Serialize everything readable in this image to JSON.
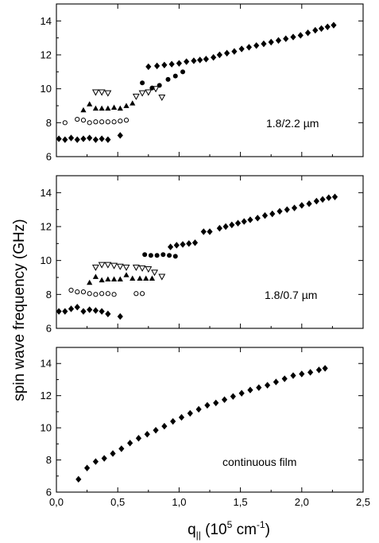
{
  "figure": {
    "ylabel": "spin wave frequency (GHz)",
    "xlabel": {
      "base": "q",
      "subscript": "||",
      "before_exp": " (10",
      "exp": "5",
      "mid": " cm",
      "exp2": "-1",
      "after": ")"
    },
    "x_tick_labels": [
      "0,0",
      "0,5",
      "1,0",
      "1,5",
      "2,0",
      "2,5"
    ],
    "y_tick_labels": [
      "6",
      "8",
      "10",
      "12",
      "14"
    ]
  },
  "chart_data": [
    {
      "type": "scatter",
      "title": "",
      "annotation": "1.8/2.2 µm",
      "xlabel": "q|| (10^5 cm^-1)",
      "ylabel": "spin wave frequency (GHz)",
      "xlim": [
        0,
        2.5
      ],
      "ylim": [
        6,
        15
      ],
      "grid": false,
      "series": [
        {
          "marker": "filled-diamond",
          "x": [
            0.02,
            0.07,
            0.12,
            0.17,
            0.22,
            0.27,
            0.32,
            0.37,
            0.42,
            0.52,
            0.75,
            0.82,
            0.88,
            0.94,
            1.0,
            1.06,
            1.12,
            1.17,
            1.22,
            1.28,
            1.33,
            1.39,
            1.45,
            1.51,
            1.57,
            1.63,
            1.69,
            1.75,
            1.81,
            1.87,
            1.93,
            1.99,
            2.05,
            2.11,
            2.16,
            2.21,
            2.26
          ],
          "y": [
            7.05,
            7.0,
            7.1,
            7.0,
            7.05,
            7.1,
            7.0,
            7.05,
            7.0,
            7.25,
            11.3,
            11.35,
            11.4,
            11.45,
            11.5,
            11.6,
            11.65,
            11.7,
            11.75,
            11.85,
            12.0,
            12.1,
            12.2,
            12.35,
            12.45,
            12.55,
            12.65,
            12.75,
            12.85,
            12.95,
            13.05,
            13.15,
            13.3,
            13.45,
            13.55,
            13.65,
            13.75
          ]
        },
        {
          "marker": "open-circle",
          "x": [
            0.07,
            0.17,
            0.22,
            0.27,
            0.32,
            0.37,
            0.42,
            0.47,
            0.52,
            0.57
          ],
          "y": [
            8.0,
            8.2,
            8.15,
            8.0,
            8.05,
            8.05,
            8.05,
            8.05,
            8.1,
            8.15
          ]
        },
        {
          "marker": "filled-triangle",
          "x": [
            0.22,
            0.27,
            0.32,
            0.37,
            0.42,
            0.47,
            0.52,
            0.57,
            0.62
          ],
          "y": [
            8.75,
            9.1,
            8.85,
            8.85,
            8.85,
            8.9,
            8.85,
            9.0,
            9.15
          ]
        },
        {
          "marker": "open-triangle-down",
          "x": [
            0.32,
            0.37,
            0.42,
            0.65,
            0.7,
            0.75,
            0.81,
            0.86
          ],
          "y": [
            9.8,
            9.8,
            9.75,
            9.55,
            9.75,
            9.8,
            10.0,
            9.5
          ]
        },
        {
          "marker": "filled-circle",
          "x": [
            0.7,
            0.78,
            0.84,
            0.91,
            0.97,
            1.03
          ],
          "y": [
            10.35,
            10.05,
            10.2,
            10.55,
            10.75,
            11.0
          ]
        }
      ]
    },
    {
      "type": "scatter",
      "title": "",
      "annotation": "1.8/0.7 µm",
      "xlabel": "q|| (10^5 cm^-1)",
      "ylabel": "spin wave frequency (GHz)",
      "xlim": [
        0,
        2.5
      ],
      "ylim": [
        6,
        15
      ],
      "grid": false,
      "series": [
        {
          "marker": "filled-diamond",
          "x": [
            0.02,
            0.07,
            0.12,
            0.17,
            0.22,
            0.27,
            0.32,
            0.37,
            0.42,
            0.52,
            0.93,
            0.98,
            1.03,
            1.08,
            1.13,
            1.2,
            1.25,
            1.33,
            1.38,
            1.43,
            1.48,
            1.53,
            1.58,
            1.64,
            1.7,
            1.76,
            1.82,
            1.88,
            1.94,
            2.0,
            2.06,
            2.12,
            2.17,
            2.22,
            2.27
          ],
          "y": [
            7.0,
            7.0,
            7.15,
            7.25,
            7.0,
            7.1,
            7.05,
            7.0,
            6.85,
            6.7,
            10.8,
            10.9,
            10.95,
            11.0,
            11.05,
            11.7,
            11.7,
            11.9,
            12.0,
            12.1,
            12.2,
            12.3,
            12.4,
            12.5,
            12.65,
            12.75,
            12.9,
            13.0,
            13.1,
            13.25,
            13.35,
            13.5,
            13.6,
            13.7,
            13.75
          ]
        },
        {
          "marker": "open-circle",
          "x": [
            0.12,
            0.17,
            0.22,
            0.27,
            0.32,
            0.37,
            0.42,
            0.47,
            0.65,
            0.7
          ],
          "y": [
            8.25,
            8.15,
            8.15,
            8.05,
            8.0,
            8.05,
            8.05,
            8.0,
            8.05,
            8.05
          ]
        },
        {
          "marker": "filled-triangle",
          "x": [
            0.27,
            0.32,
            0.37,
            0.42,
            0.47,
            0.52,
            0.57,
            0.62,
            0.68,
            0.73,
            0.78
          ],
          "y": [
            8.7,
            9.05,
            8.85,
            8.9,
            8.9,
            8.9,
            9.15,
            8.95,
            8.95,
            8.95,
            8.95
          ]
        },
        {
          "marker": "open-triangle-down",
          "x": [
            0.32,
            0.37,
            0.42,
            0.47,
            0.52,
            0.57,
            0.65,
            0.7,
            0.75,
            0.8,
            0.86
          ],
          "y": [
            9.6,
            9.75,
            9.75,
            9.7,
            9.65,
            9.6,
            9.6,
            9.55,
            9.5,
            9.3,
            9.05
          ]
        },
        {
          "marker": "filled-circle",
          "x": [
            0.72,
            0.77,
            0.82,
            0.87,
            0.92,
            0.97
          ],
          "y": [
            10.35,
            10.3,
            10.3,
            10.35,
            10.3,
            10.25
          ]
        }
      ]
    },
    {
      "type": "scatter",
      "title": "",
      "annotation": "continuous film",
      "xlabel": "q|| (10^5 cm^-1)",
      "ylabel": "spin wave frequency (GHz)",
      "xlim": [
        0,
        2.5
      ],
      "ylim": [
        6,
        15
      ],
      "grid": false,
      "series": [
        {
          "marker": "filled-diamond",
          "x": [
            0.18,
            0.25,
            0.32,
            0.39,
            0.46,
            0.53,
            0.6,
            0.67,
            0.74,
            0.81,
            0.88,
            0.95,
            1.02,
            1.09,
            1.16,
            1.23,
            1.3,
            1.37,
            1.44,
            1.51,
            1.58,
            1.65,
            1.72,
            1.79,
            1.86,
            1.93,
            2.0,
            2.07,
            2.14,
            2.19
          ],
          "y": [
            6.8,
            7.5,
            7.9,
            8.1,
            8.4,
            8.7,
            9.05,
            9.35,
            9.6,
            9.85,
            10.1,
            10.4,
            10.65,
            10.9,
            11.15,
            11.4,
            11.55,
            11.75,
            11.95,
            12.15,
            12.35,
            12.5,
            12.65,
            12.85,
            13.05,
            13.25,
            13.35,
            13.45,
            13.6,
            13.7
          ]
        }
      ]
    }
  ]
}
